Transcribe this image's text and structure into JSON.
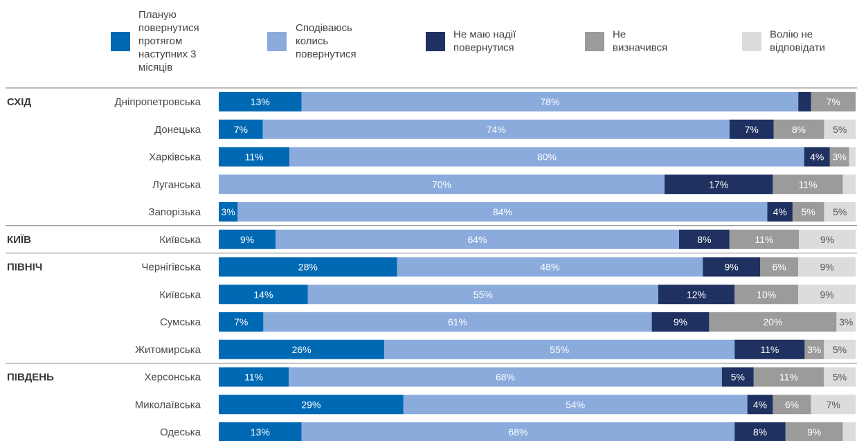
{
  "chart_data": {
    "type": "bar",
    "orientation": "horizontal",
    "stacked": true,
    "xlim": [
      0,
      100
    ],
    "legend_position": "top",
    "series": [
      {
        "name": "Планую повернутися протягом наступних 3 місяців",
        "color": "#0069b4",
        "label_color": "#ffffff"
      },
      {
        "name": "Сподіваюсь колись повернутися",
        "color": "#8aabdc",
        "label_color": "#ffffff"
      },
      {
        "name": "Не маю надії повернутися",
        "color": "#1f3160",
        "label_color": "#ffffff"
      },
      {
        "name": "Не визначився",
        "color": "#9b9b9b",
        "label_color": "#ffffff"
      },
      {
        "name": "Волію не відповідати",
        "color": "#dcdcdc",
        "label_color": "#555555"
      }
    ],
    "legend_lines": [
      [
        "Планую",
        "повернутися",
        "протягом",
        "наступних 3",
        "місяців"
      ],
      [
        "Сподіваюсь",
        "колись",
        "повернутися"
      ],
      [
        "Не маю надії",
        "повернутися"
      ],
      [
        "Не",
        "визначився"
      ],
      [
        "Волію не",
        "відповідати"
      ]
    ],
    "rows": [
      {
        "region": "СХІД",
        "oblast": "Дніпропетровська",
        "values": [
          13,
          78,
          2,
          7,
          0
        ],
        "labels": [
          "13%",
          "78%",
          "",
          "7%",
          ""
        ]
      },
      {
        "region": "",
        "oblast": "Донецька",
        "values": [
          7,
          74,
          7,
          8,
          5
        ],
        "labels": [
          "7%",
          "74%",
          "7%",
          "8%",
          "5%"
        ]
      },
      {
        "region": "",
        "oblast": "Харківська",
        "values": [
          11,
          80,
          4,
          3,
          1
        ],
        "labels": [
          "11%",
          "80%",
          "4%",
          "3%",
          ""
        ]
      },
      {
        "region": "",
        "oblast": "Луганська",
        "values": [
          0,
          70,
          17,
          11,
          2
        ],
        "labels": [
          "",
          "70%",
          "17%",
          "11%",
          ""
        ]
      },
      {
        "region": "",
        "oblast": "Запорізька",
        "values": [
          3,
          84,
          4,
          5,
          5
        ],
        "labels": [
          "3%",
          "84%",
          "4%",
          "5%",
          "5%"
        ]
      },
      {
        "region": "КИЇВ",
        "oblast": "Київська",
        "values": [
          9,
          64,
          8,
          11,
          9
        ],
        "labels": [
          "9%",
          "64%",
          "8%",
          "11%",
          "9%"
        ]
      },
      {
        "region": "ПІВНІЧ",
        "oblast": "Чернігівська",
        "values": [
          28,
          48,
          9,
          6,
          9
        ],
        "labels": [
          "28%",
          "48%",
          "9%",
          "6%",
          "9%"
        ]
      },
      {
        "region": "",
        "oblast": "Київська",
        "values": [
          14,
          55,
          12,
          10,
          9
        ],
        "labels": [
          "14%",
          "55%",
          "12%",
          "10%",
          "9%"
        ]
      },
      {
        "region": "",
        "oblast": "Сумська",
        "values": [
          7,
          61,
          9,
          20,
          3
        ],
        "labels": [
          "7%",
          "61%",
          "9%",
          "20%",
          "3%"
        ]
      },
      {
        "region": "",
        "oblast": "Житомирська",
        "values": [
          26,
          55,
          11,
          3,
          5
        ],
        "labels": [
          "26%",
          "55%",
          "11%",
          "3%",
          "5%"
        ]
      },
      {
        "region": "ПІВДЕНЬ",
        "oblast": "Херсонська",
        "values": [
          11,
          68,
          5,
          11,
          5
        ],
        "labels": [
          "11%",
          "68%",
          "5%",
          "11%",
          "5%"
        ]
      },
      {
        "region": "",
        "oblast": "Миколаївська",
        "values": [
          29,
          54,
          4,
          6,
          7
        ],
        "labels": [
          "29%",
          "54%",
          "4%",
          "6%",
          "7%"
        ]
      },
      {
        "region": "",
        "oblast": "Одеська",
        "values": [
          13,
          68,
          8,
          9,
          2
        ],
        "labels": [
          "13%",
          "68%",
          "8%",
          "9%",
          ""
        ]
      }
    ]
  }
}
